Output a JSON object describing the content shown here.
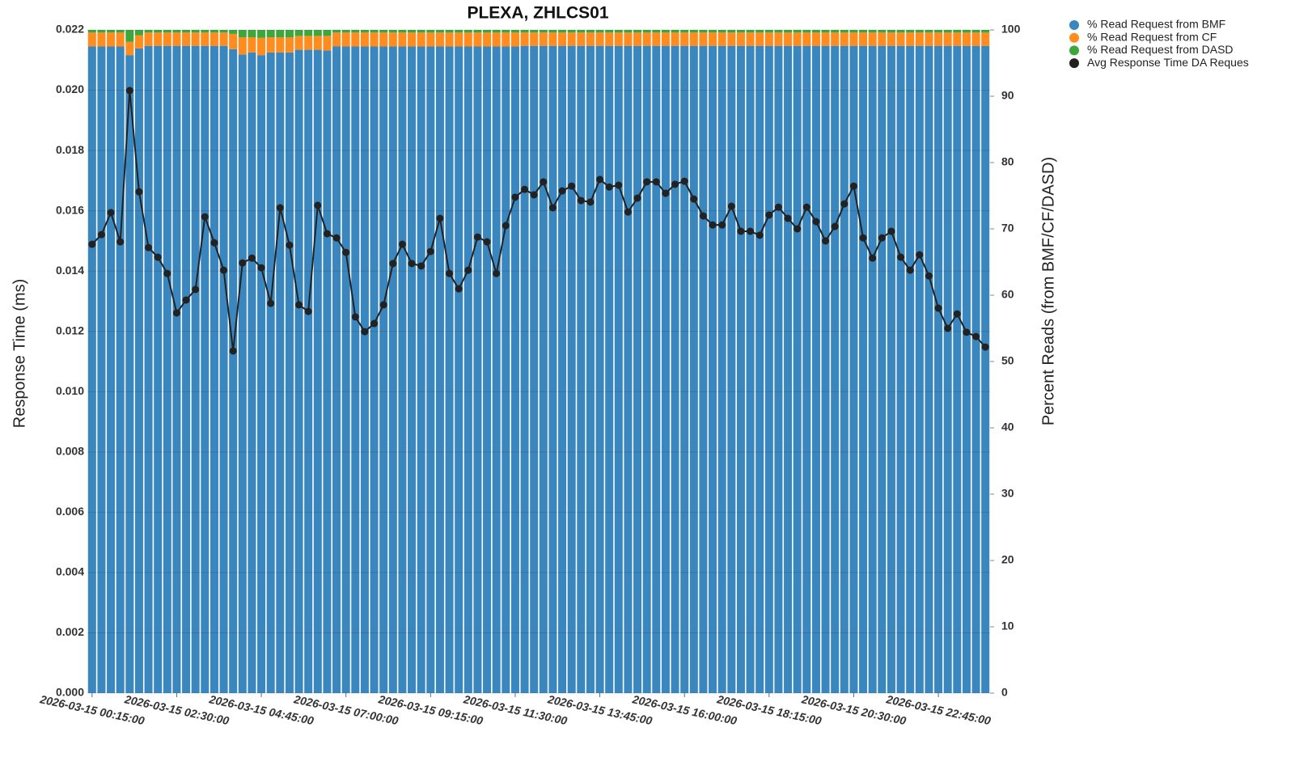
{
  "chart_data": {
    "type": "bar",
    "stacked": true,
    "title": "PLEXA, ZHLCS01",
    "y_label": "Response Time (ms)",
    "y2_label": "Percent Reads (from BMF/CF/DASD)",
    "grid": true,
    "legend": "top-right",
    "categories": [
      "2026-03-15 00:15:00",
      null,
      null,
      null,
      null,
      null,
      null,
      null,
      null,
      "2026-03-15 02:30:00",
      null,
      null,
      null,
      null,
      null,
      null,
      null,
      null,
      "2026-03-15 04:45:00",
      null,
      null,
      null,
      null,
      null,
      null,
      null,
      null,
      "2026-03-15 07:00:00",
      null,
      null,
      null,
      null,
      null,
      null,
      null,
      null,
      "2026-03-15 09:15:00",
      null,
      null,
      null,
      null,
      null,
      null,
      null,
      null,
      "2026-03-15 11:30:00",
      null,
      null,
      null,
      null,
      null,
      null,
      null,
      null,
      "2026-03-15 13:45:00",
      null,
      null,
      null,
      null,
      null,
      null,
      null,
      null,
      "2026-03-15 16:00:00",
      null,
      null,
      null,
      null,
      null,
      null,
      null,
      null,
      "2026-03-15 18:15:00",
      null,
      null,
      null,
      null,
      null,
      null,
      null,
      null,
      "2026-03-15 20:30:00",
      null,
      null,
      null,
      null,
      null,
      null,
      null,
      null,
      "2026-03-15 22:45:00",
      null,
      null,
      null,
      null,
      null
    ],
    "ylim": [
      0,
      0.022
    ],
    "yticks": [
      {
        "value": 0,
        "label": "0.000"
      },
      {
        "value": 0.002,
        "label": "0.002"
      },
      {
        "value": 0.004,
        "label": "0.004"
      },
      {
        "value": 0.006,
        "label": "0.006"
      },
      {
        "value": 0.008,
        "label": "0.008"
      },
      {
        "value": 0.01,
        "label": "0.010"
      },
      {
        "value": 0.012,
        "label": "0.012"
      },
      {
        "value": 0.014,
        "label": "0.014"
      },
      {
        "value": 0.016,
        "label": "0.016"
      },
      {
        "value": 0.018,
        "label": "0.018"
      },
      {
        "value": 0.02,
        "label": "0.020"
      },
      {
        "value": 0.022,
        "label": "0.022"
      }
    ],
    "y2lim": [
      0,
      100
    ],
    "y2ticks": [
      0,
      10,
      20,
      30,
      40,
      50,
      60,
      70,
      80,
      90,
      100
    ],
    "series": [
      {
        "name": "% Read Request from BMF",
        "color": "#3a86bf",
        "axis": "y2",
        "type": "bar",
        "values": [
          97.5,
          97.5,
          97.5,
          97.5,
          96.2,
          97.2,
          97.6,
          97.6,
          97.6,
          97.6,
          97.6,
          97.6,
          97.6,
          97.6,
          97.6,
          97.1,
          96.3,
          96.6,
          96.2,
          96.6,
          96.6,
          96.6,
          97.0,
          97.0,
          97.0,
          96.9,
          97.5,
          97.5,
          97.5,
          97.5,
          97.5,
          97.5,
          97.5,
          97.5,
          97.5,
          97.5,
          97.5,
          97.5,
          97.5,
          97.5,
          97.5,
          97.5,
          97.5,
          97.5,
          97.5,
          97.5,
          97.6,
          97.6,
          97.6,
          97.6,
          97.6,
          97.6,
          97.6,
          97.6,
          97.6,
          97.6,
          97.6,
          97.6,
          97.6,
          97.6,
          97.6,
          97.6,
          97.6,
          97.6,
          97.6,
          97.6,
          97.6,
          97.6,
          97.6,
          97.6,
          97.6,
          97.6,
          97.6,
          97.6,
          97.6,
          97.6,
          97.6,
          97.6,
          97.6,
          97.6,
          97.6,
          97.6,
          97.6,
          97.6,
          97.6,
          97.6,
          97.6,
          97.6,
          97.6,
          97.6,
          97.6,
          97.6,
          97.6,
          97.6,
          97.6,
          97.6
        ]
      },
      {
        "name": "% Read Request from CF",
        "color": "#ff8c1f",
        "axis": "y2",
        "type": "bar",
        "values": [
          2.1,
          2.1,
          2.1,
          2.1,
          2.0,
          2.0,
          2.0,
          2.0,
          2.0,
          2.0,
          2.0,
          2.0,
          2.0,
          2.0,
          2.0,
          2.3,
          2.6,
          2.3,
          2.6,
          2.3,
          2.3,
          2.3,
          2.1,
          2.1,
          2.1,
          2.2,
          2.1,
          2.1,
          2.1,
          2.1,
          2.1,
          2.1,
          2.1,
          2.1,
          2.1,
          2.1,
          2.1,
          2.1,
          2.1,
          2.1,
          2.1,
          2.1,
          2.1,
          2.1,
          2.1,
          2.1,
          2.0,
          2.0,
          2.0,
          2.0,
          2.0,
          2.0,
          2.0,
          2.0,
          2.0,
          2.0,
          2.0,
          2.0,
          2.0,
          2.0,
          2.0,
          2.0,
          2.0,
          2.0,
          2.0,
          2.0,
          2.0,
          2.0,
          2.0,
          2.0,
          2.0,
          2.0,
          2.0,
          2.0,
          2.0,
          2.0,
          2.0,
          2.0,
          2.0,
          2.0,
          2.0,
          2.0,
          2.0,
          2.0,
          2.0,
          2.0,
          2.0,
          2.0,
          2.0,
          2.0,
          2.0,
          2.0,
          2.0,
          2.0,
          2.0,
          2.0
        ]
      },
      {
        "name": "% Read Request from DASD",
        "color": "#3ca83c",
        "axis": "y2",
        "type": "bar",
        "values": [
          0.4,
          0.4,
          0.4,
          0.4,
          1.8,
          0.8,
          0.4,
          0.4,
          0.4,
          0.4,
          0.4,
          0.4,
          0.4,
          0.4,
          0.4,
          0.6,
          1.1,
          1.1,
          1.2,
          1.1,
          1.1,
          1.1,
          0.9,
          0.9,
          0.9,
          0.9,
          0.4,
          0.4,
          0.4,
          0.4,
          0.4,
          0.4,
          0.4,
          0.4,
          0.4,
          0.4,
          0.4,
          0.4,
          0.4,
          0.4,
          0.4,
          0.4,
          0.4,
          0.4,
          0.4,
          0.4,
          0.4,
          0.4,
          0.4,
          0.4,
          0.4,
          0.4,
          0.4,
          0.4,
          0.4,
          0.4,
          0.4,
          0.4,
          0.4,
          0.4,
          0.4,
          0.4,
          0.4,
          0.4,
          0.4,
          0.4,
          0.4,
          0.4,
          0.4,
          0.4,
          0.4,
          0.4,
          0.4,
          0.4,
          0.4,
          0.4,
          0.4,
          0.4,
          0.4,
          0.4,
          0.4,
          0.4,
          0.4,
          0.4,
          0.4,
          0.4,
          0.4,
          0.4,
          0.4,
          0.4,
          0.4,
          0.4,
          0.4,
          0.4,
          0.4,
          0.4
        ]
      },
      {
        "name": "Avg Response Time DA Reques",
        "color": "#222222",
        "axis": "y",
        "type": "line",
        "values": [
          0.01489,
          0.01521,
          0.01594,
          0.01497,
          0.01999,
          0.01663,
          0.01478,
          0.01446,
          0.01392,
          0.01261,
          0.01304,
          0.01339,
          0.0158,
          0.01494,
          0.01403,
          0.01135,
          0.01427,
          0.01443,
          0.01411,
          0.01293,
          0.0161,
          0.01486,
          0.01288,
          0.01266,
          0.01618,
          0.01524,
          0.0151,
          0.01462,
          0.01248,
          0.01199,
          0.01226,
          0.01288,
          0.01425,
          0.01489,
          0.01425,
          0.01417,
          0.01465,
          0.01575,
          0.01392,
          0.01341,
          0.01403,
          0.01513,
          0.01497,
          0.01392,
          0.01551,
          0.01645,
          0.01671,
          0.01653,
          0.01696,
          0.0161,
          0.01666,
          0.01682,
          0.01634,
          0.01629,
          0.01704,
          0.01679,
          0.01685,
          0.01596,
          0.01642,
          0.01696,
          0.01696,
          0.01658,
          0.01688,
          0.01698,
          0.01639,
          0.01583,
          0.01553,
          0.01553,
          0.01615,
          0.01532,
          0.01532,
          0.01519,
          0.01586,
          0.01612,
          0.01575,
          0.0154,
          0.01612,
          0.01564,
          0.015,
          0.01548,
          0.01623,
          0.01682,
          0.0151,
          0.01443,
          0.0151,
          0.01532,
          0.01446,
          0.01403,
          0.01454,
          0.01384,
          0.01277,
          0.0121,
          0.01258,
          0.01197,
          0.01183,
          0.01148
        ]
      }
    ]
  }
}
